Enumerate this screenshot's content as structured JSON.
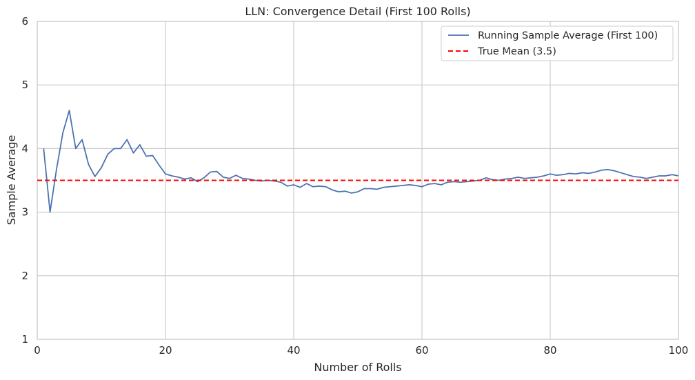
{
  "chart_data": {
    "type": "line",
    "title": "LLN: Convergence Detail (First 100 Rolls)",
    "xlabel": "Number of Rolls",
    "ylabel": "Sample Average",
    "xlim": [
      0,
      100
    ],
    "ylim": [
      1,
      6
    ],
    "xticks": [
      0,
      20,
      40,
      60,
      80,
      100
    ],
    "yticks": [
      1,
      2,
      3,
      4,
      5,
      6
    ],
    "grid": true,
    "legend_position": "top-right",
    "series": [
      {
        "name": "Running Sample Average (First 100)",
        "color": "#4c72b0",
        "style": "solid",
        "x": [
          1,
          2,
          3,
          4,
          5,
          6,
          7,
          8,
          9,
          10,
          11,
          12,
          13,
          14,
          15,
          16,
          17,
          18,
          19,
          20,
          21,
          22,
          23,
          24,
          25,
          26,
          27,
          28,
          29,
          30,
          31,
          32,
          33,
          34,
          35,
          36,
          37,
          38,
          39,
          40,
          41,
          42,
          43,
          44,
          45,
          46,
          47,
          48,
          49,
          50,
          51,
          52,
          53,
          54,
          55,
          56,
          57,
          58,
          59,
          60,
          61,
          62,
          63,
          64,
          65,
          66,
          67,
          68,
          69,
          70,
          71,
          72,
          73,
          74,
          75,
          76,
          77,
          78,
          79,
          80,
          81,
          82,
          83,
          84,
          85,
          86,
          87,
          88,
          89,
          90,
          91,
          92,
          93,
          94,
          95,
          96,
          97,
          98,
          99,
          100
        ],
        "y": [
          4.0,
          3.0,
          3.67,
          4.25,
          4.6,
          4.0,
          4.14,
          3.75,
          3.56,
          3.7,
          3.91,
          4.0,
          4.0,
          4.14,
          3.93,
          4.06,
          3.88,
          3.89,
          3.74,
          3.6,
          3.57,
          3.55,
          3.52,
          3.54,
          3.48,
          3.54,
          3.63,
          3.64,
          3.55,
          3.53,
          3.58,
          3.53,
          3.52,
          3.5,
          3.49,
          3.5,
          3.49,
          3.47,
          3.41,
          3.43,
          3.39,
          3.45,
          3.4,
          3.41,
          3.4,
          3.35,
          3.32,
          3.33,
          3.3,
          3.32,
          3.37,
          3.37,
          3.36,
          3.39,
          3.4,
          3.41,
          3.42,
          3.43,
          3.42,
          3.4,
          3.44,
          3.45,
          3.43,
          3.47,
          3.48,
          3.47,
          3.48,
          3.49,
          3.5,
          3.54,
          3.51,
          3.5,
          3.52,
          3.53,
          3.55,
          3.53,
          3.54,
          3.55,
          3.57,
          3.6,
          3.58,
          3.59,
          3.61,
          3.6,
          3.62,
          3.61,
          3.63,
          3.66,
          3.67,
          3.65,
          3.62,
          3.59,
          3.56,
          3.55,
          3.53,
          3.55,
          3.57,
          3.57,
          3.59,
          3.57
        ]
      },
      {
        "name": "True Mean (3.5)",
        "color": "#ff0000",
        "style": "dashed",
        "constant": 3.5
      }
    ]
  }
}
